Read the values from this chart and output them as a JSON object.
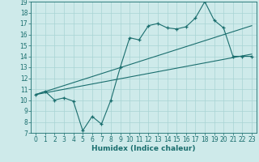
{
  "title": "",
  "xlabel": "Humidex (Indice chaleur)",
  "bg_color": "#ceeaea",
  "grid_color": "#a8d4d4",
  "line_color": "#1a6e6e",
  "xlim": [
    -0.5,
    23.5
  ],
  "ylim": [
    7,
    19
  ],
  "xticks": [
    0,
    1,
    2,
    3,
    4,
    5,
    6,
    7,
    8,
    9,
    10,
    11,
    12,
    13,
    14,
    15,
    16,
    17,
    18,
    19,
    20,
    21,
    22,
    23
  ],
  "yticks": [
    7,
    8,
    9,
    10,
    11,
    12,
    13,
    14,
    15,
    16,
    17,
    18,
    19
  ],
  "line1_x": [
    0,
    1,
    2,
    3,
    4,
    5,
    6,
    7,
    8,
    9,
    10,
    11,
    12,
    13,
    14,
    15,
    16,
    17,
    18,
    19,
    20,
    21,
    22,
    23
  ],
  "line1_y": [
    10.5,
    10.8,
    10.0,
    10.2,
    9.9,
    7.2,
    8.5,
    7.8,
    10.0,
    13.0,
    15.7,
    15.5,
    16.8,
    17.0,
    16.6,
    16.5,
    16.7,
    17.5,
    19.0,
    17.3,
    16.6,
    14.0,
    14.0,
    14.0
  ],
  "line2_x": [
    0,
    23
  ],
  "line2_y": [
    10.5,
    14.2
  ],
  "line3_x": [
    0,
    23
  ],
  "line3_y": [
    10.5,
    16.8
  ],
  "tick_fontsize": 5.5,
  "label_fontsize": 6.5
}
